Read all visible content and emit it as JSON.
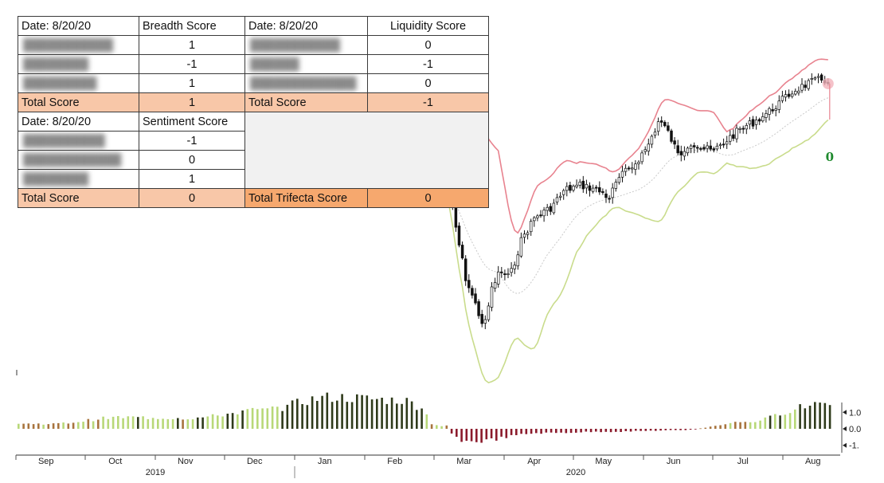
{
  "chart_data": {
    "type": "candlestick",
    "title": "",
    "xlabel": "",
    "ylabel": "",
    "x_axis": {
      "month_ticks": [
        "Sep",
        "Oct",
        "Nov",
        "Dec",
        "Jan",
        "Feb",
        "Mar",
        "Apr",
        "May",
        "Jun",
        "Jul",
        "Aug"
      ],
      "years": [
        "2019",
        "2020"
      ]
    },
    "oscillator": {
      "y_ticks": [
        "1.0",
        "0.0",
        "-1."
      ],
      "ylim": [
        -1.3,
        2.6
      ],
      "bars_per_month": 14,
      "monthly_levels": [
        {
          "month": "Sep",
          "value": 0.35
        },
        {
          "month": "Oct",
          "value": 0.8
        },
        {
          "month": "Nov",
          "value": 0.75
        },
        {
          "month": "Dec",
          "value": 1.3
        },
        {
          "month": "Jan",
          "value": 2.2
        },
        {
          "month": "Feb",
          "value": 2.0
        },
        {
          "month": "Mar",
          "value": -0.9
        },
        {
          "month": "Apr",
          "value": -0.3
        },
        {
          "month": "May",
          "value": -0.2
        },
        {
          "month": "Jun",
          "value": -0.1
        },
        {
          "month": "Jul",
          "value": 0.5
        },
        {
          "month": "Aug",
          "value": 1.8
        }
      ],
      "colors": {
        "strong_positive": "#2e3a1a",
        "positive": "#b8d878",
        "weak_positive": "#a8743e",
        "negative": "#8b1b2c"
      }
    },
    "price": {
      "colors": {
        "up": "#ffffff",
        "down": "#111111",
        "upper_band": "#e8838f",
        "lower_band": "#c9dc8c",
        "mid_band": "#c9c9c9"
      }
    },
    "annotation": {
      "text": "0",
      "color": "#1f8a2e"
    }
  },
  "score_table": {
    "date_label_1": "Date: 8/20/20",
    "breadth_header": "Breadth Score",
    "date_label_2": "Date: 8/20/20",
    "liquidity_header": "Liquidity Score",
    "date_label_3": "Date: 8/20/20",
    "sentiment_header": "Sentiment Score",
    "breadth_values": [
      "1",
      "-1",
      "1"
    ],
    "liquidity_values": [
      "0",
      "-1",
      "0"
    ],
    "sentiment_values": [
      "-1",
      "0",
      "1"
    ],
    "total_label_1": "Total Score",
    "breadth_total": "1",
    "total_label_2": "Total Score",
    "liquidity_total": "-1",
    "total_label_3": "Total Score",
    "sentiment_total": "0",
    "trifecta_label": "Total Trifecta Score",
    "trifecta_total": "0"
  }
}
